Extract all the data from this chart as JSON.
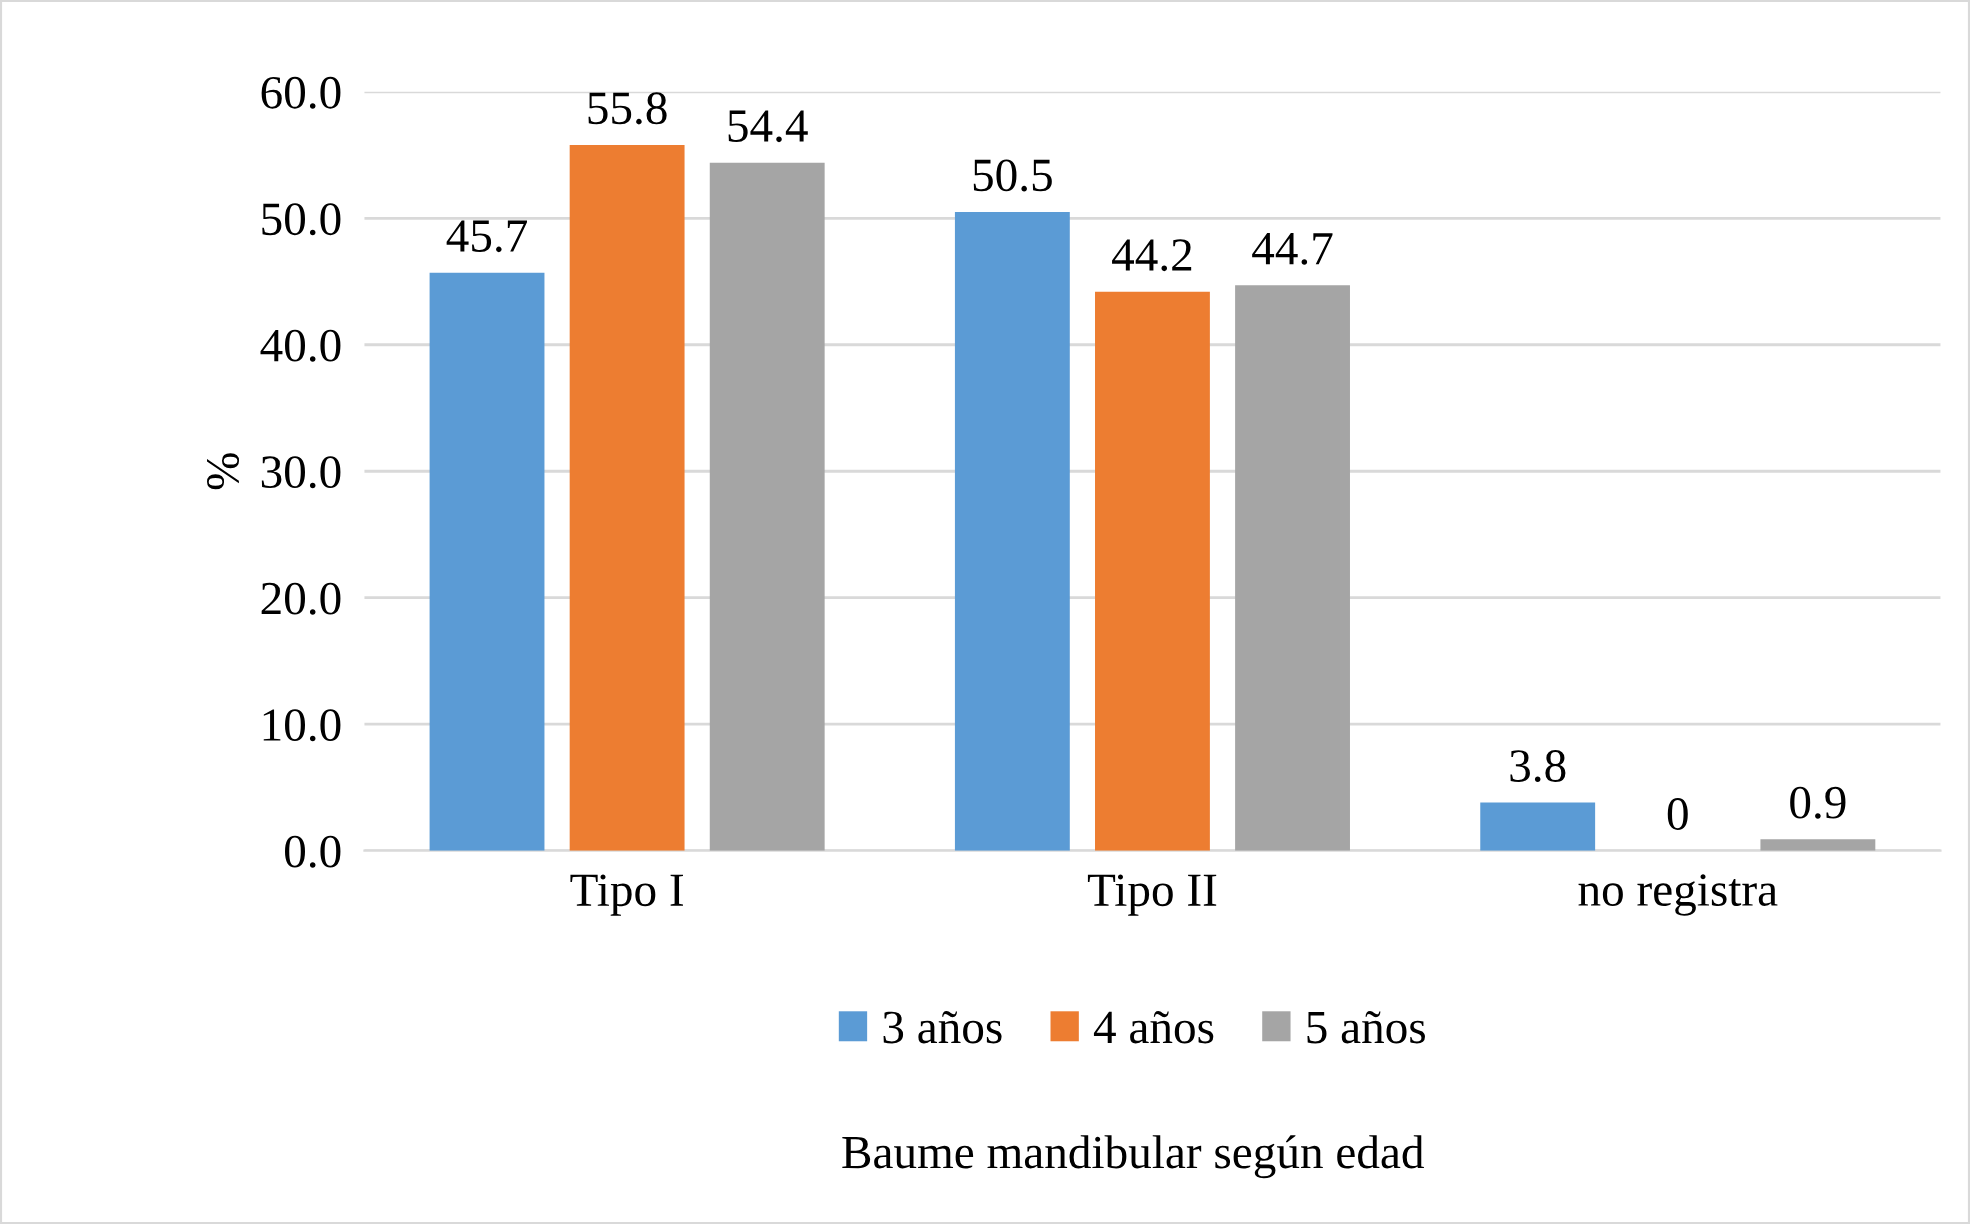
{
  "chart_data": {
    "type": "bar",
    "xlabel": "Baume mandibular según edad",
    "ylabel": "%",
    "categories": [
      "Tipo I",
      "Tipo II",
      "no registra"
    ],
    "series": [
      {
        "name": "3 años",
        "color": "#5b9bd5",
        "values": [
          45.7,
          50.5,
          3.8
        ],
        "value_labels": [
          "45.7",
          "50.5",
          "3.8"
        ]
      },
      {
        "name": "4 años",
        "color": "#ed7d31",
        "values": [
          55.8,
          44.2,
          0
        ],
        "value_labels": [
          "55.8",
          "44.2",
          "0"
        ]
      },
      {
        "name": "5 años",
        "color": "#a5a5a5",
        "values": [
          54.4,
          44.7,
          0.9
        ],
        "value_labels": [
          "54.4",
          "44.7",
          "0.9"
        ]
      }
    ],
    "ylim": [
      0,
      60
    ],
    "yticks": [
      {
        "value": 0,
        "label": "0.0"
      },
      {
        "value": 10,
        "label": "10.0"
      },
      {
        "value": 20,
        "label": "20.0"
      },
      {
        "value": 30,
        "label": "30.0"
      },
      {
        "value": 40,
        "label": "40.0"
      },
      {
        "value": 50,
        "label": "50.0"
      },
      {
        "value": 60,
        "label": "60.0"
      }
    ],
    "grid": "y",
    "legend": "bottom"
  }
}
